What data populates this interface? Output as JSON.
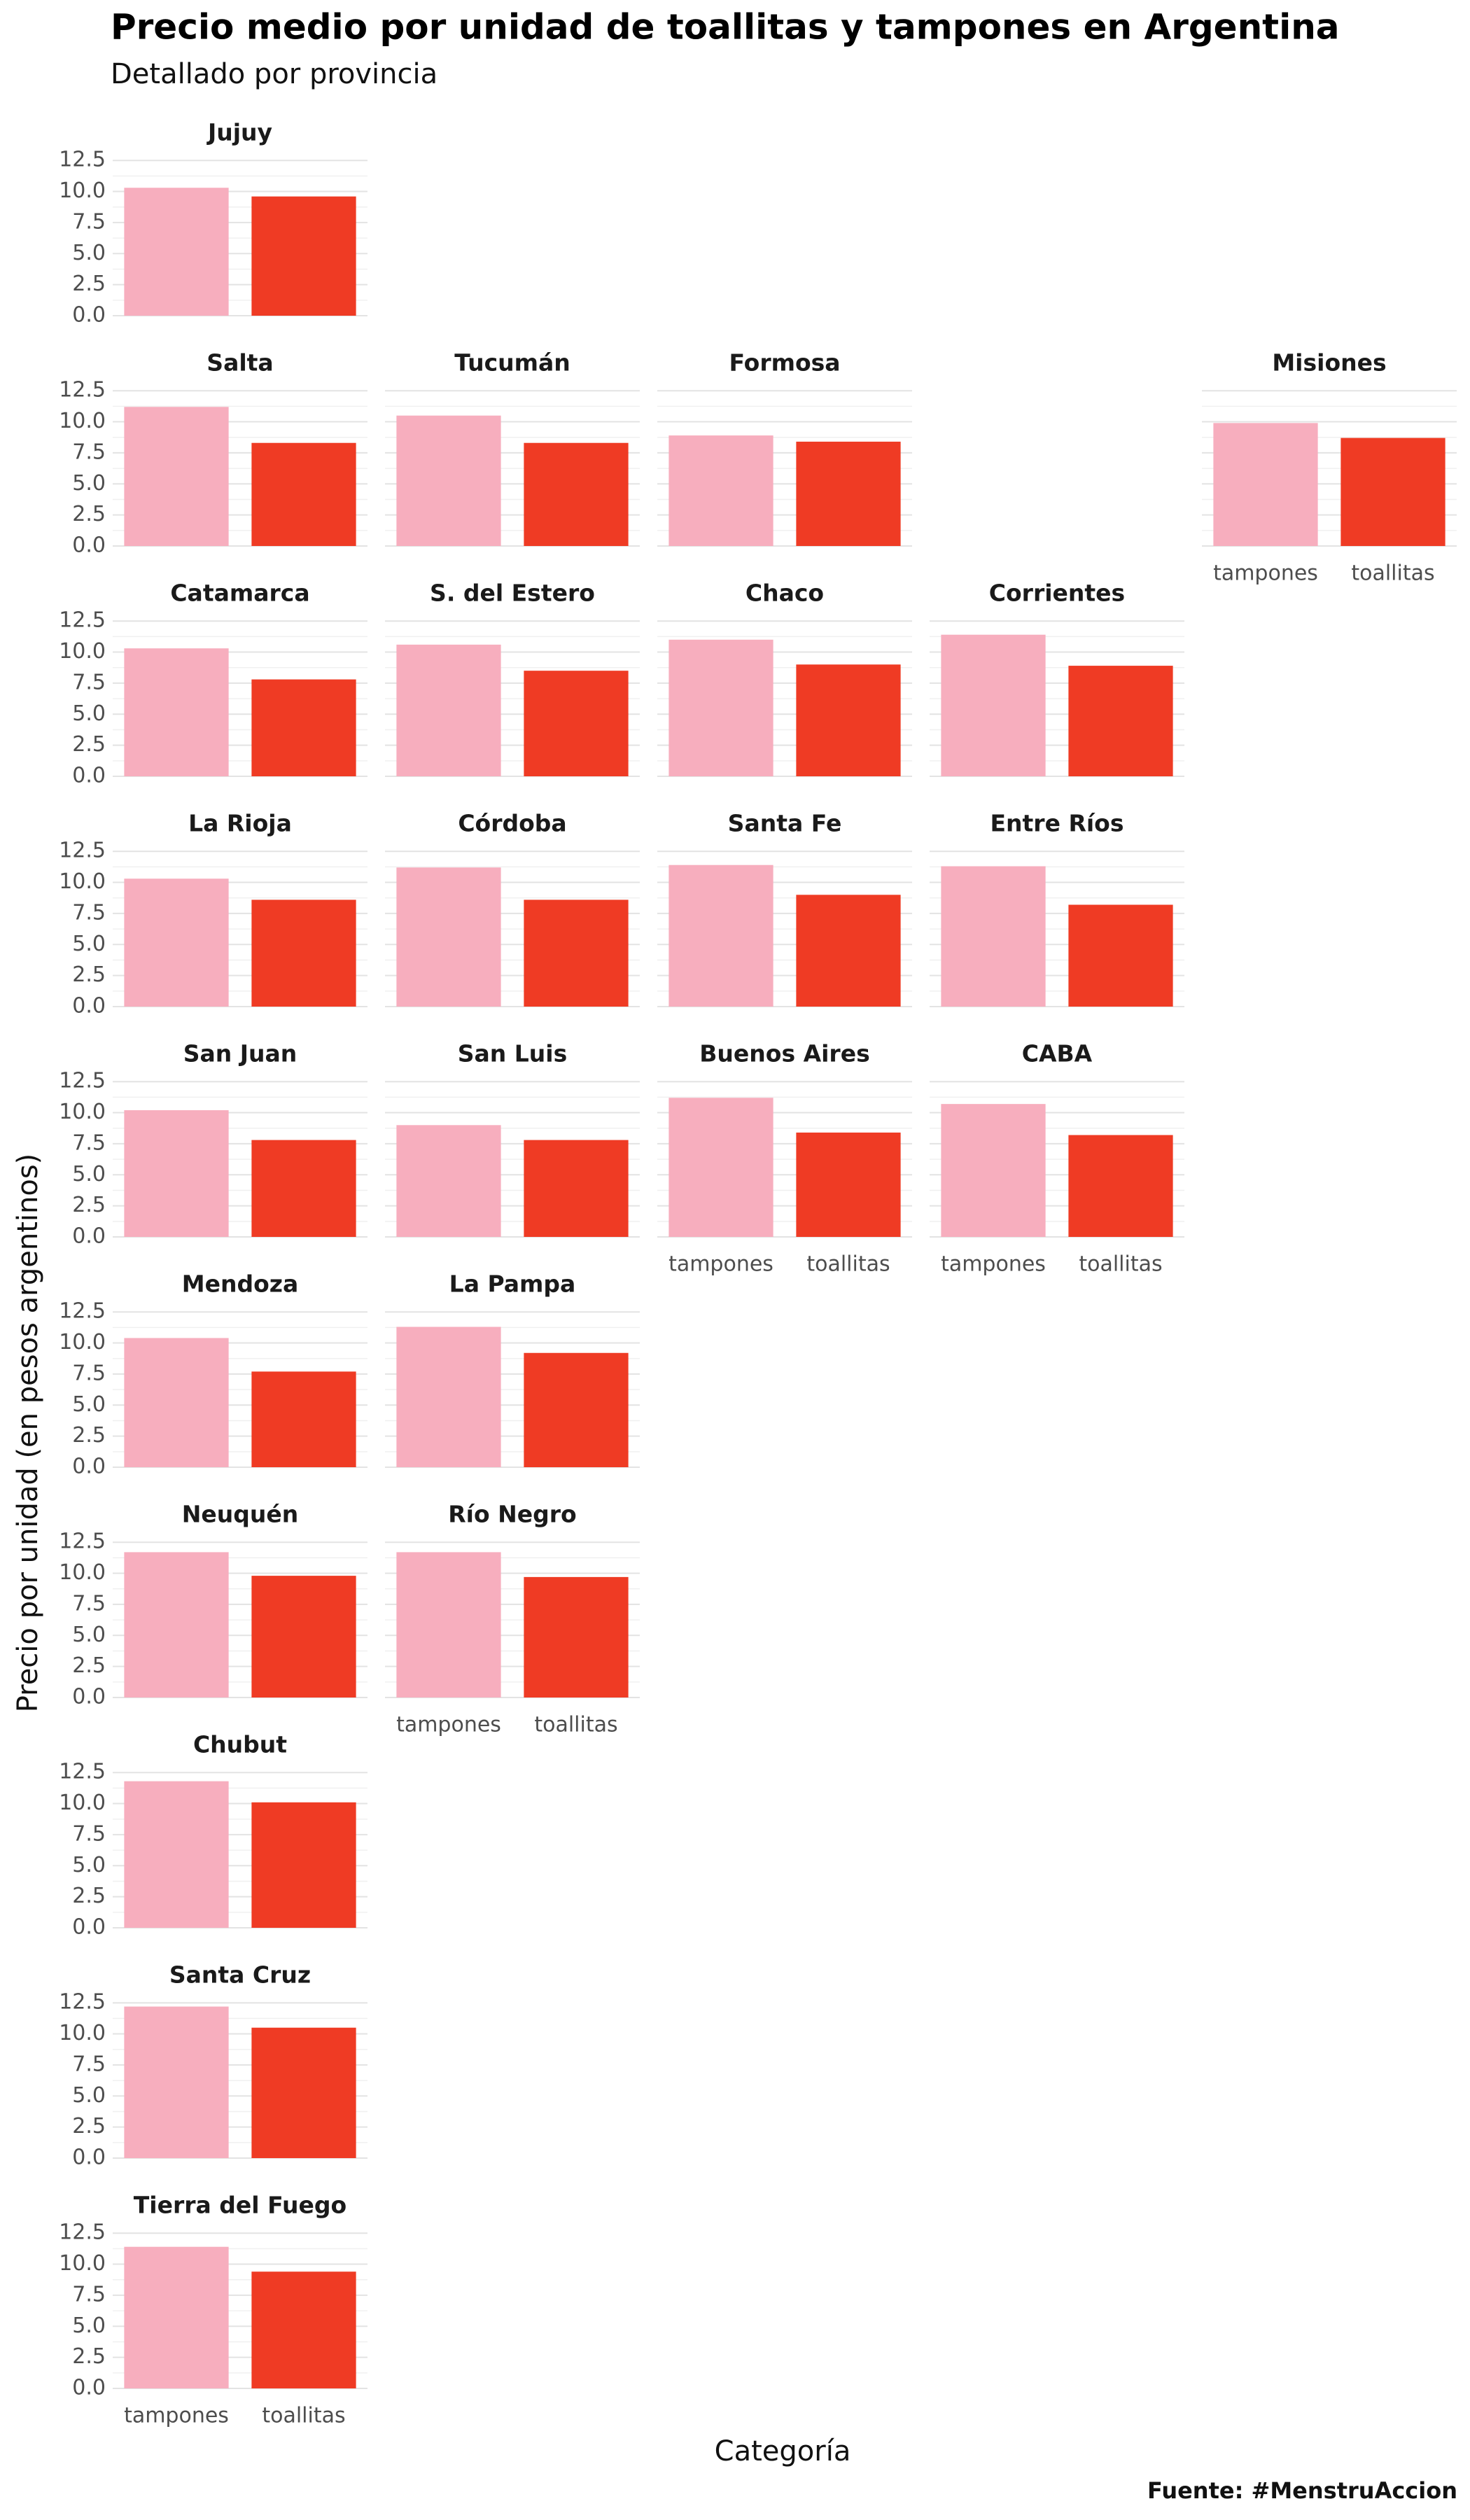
{
  "title": "Precio medio por unidad de toallitas y tampones en Argentina",
  "subtitle": "Detallado por provincia",
  "x_label": "Categoría",
  "y_label": "Precio por unidad (en pesos argentinos)",
  "source": "Fuente: #MenstruAccion",
  "categories": [
    "tampones",
    "toallitas"
  ],
  "colors": [
    "#f7aebe",
    "#ef3b24"
  ],
  "ylim": [
    0,
    13.3
  ],
  "yticks": [
    {
      "value": 0,
      "label": "0.0"
    },
    2.5,
    {
      "value": 5,
      "label": "5.0"
    },
    7.5,
    {
      "value": 10,
      "label": "10.0"
    },
    12.5
  ],
  "grid": true,
  "chart_data": [
    {
      "type": "bar",
      "title": "Jujuy",
      "values": [
        10.3,
        9.6
      ]
    },
    {
      "type": "bar",
      "title": "Salta",
      "values": [
        11.2,
        8.3
      ]
    },
    {
      "type": "bar",
      "title": "Tucumán",
      "values": [
        10.5,
        8.3
      ]
    },
    {
      "type": "bar",
      "title": "Formosa",
      "values": [
        8.9,
        8.4
      ]
    },
    {
      "type": "bar",
      "title": "Misiones",
      "values": [
        9.9,
        8.7
      ]
    },
    {
      "type": "bar",
      "title": "Catamarca",
      "values": [
        10.3,
        7.8
      ]
    },
    {
      "type": "bar",
      "title": "S. del Estero",
      "values": [
        10.6,
        8.5
      ]
    },
    {
      "type": "bar",
      "title": "Chaco",
      "values": [
        11.0,
        9.0
      ]
    },
    {
      "type": "bar",
      "title": "Corrientes",
      "values": [
        11.4,
        8.9
      ]
    },
    {
      "type": "bar",
      "title": "La Rioja",
      "values": [
        10.3,
        8.6
      ]
    },
    {
      "type": "bar",
      "title": "Córdoba",
      "values": [
        11.2,
        8.6
      ]
    },
    {
      "type": "bar",
      "title": "Santa Fe",
      "values": [
        11.4,
        9.0
      ]
    },
    {
      "type": "bar",
      "title": "Entre Ríos",
      "values": [
        11.3,
        8.2
      ]
    },
    {
      "type": "bar",
      "title": "San Juan",
      "values": [
        10.2,
        7.8
      ]
    },
    {
      "type": "bar",
      "title": "San Luis",
      "values": [
        9.0,
        7.8
      ]
    },
    {
      "type": "bar",
      "title": "Buenos Aires",
      "values": [
        11.2,
        8.4
      ]
    },
    {
      "type": "bar",
      "title": "CABA",
      "values": [
        10.7,
        8.2
      ]
    },
    {
      "type": "bar",
      "title": "Mendoza",
      "values": [
        10.4,
        7.7
      ]
    },
    {
      "type": "bar",
      "title": "La Pampa",
      "values": [
        11.3,
        9.2
      ]
    },
    {
      "type": "bar",
      "title": "Neuquén",
      "values": [
        11.7,
        9.8
      ]
    },
    {
      "type": "bar",
      "title": "Río Negro",
      "values": [
        11.7,
        9.7
      ]
    },
    {
      "type": "bar",
      "title": "Chubut",
      "values": [
        11.8,
        10.1
      ]
    },
    {
      "type": "bar",
      "title": "Santa Cruz",
      "values": [
        12.2,
        10.5
      ]
    },
    {
      "type": "bar",
      "title": "Tierra del Fuego",
      "values": [
        11.4,
        9.4
      ]
    }
  ]
}
